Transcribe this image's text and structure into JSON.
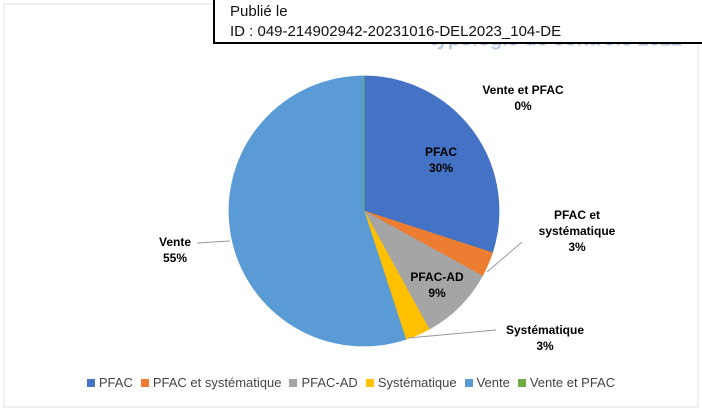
{
  "chart_data": {
    "type": "pie",
    "title": "typologie de contrôle 2022",
    "categories": [
      "PFAC",
      "PFAC et systématique",
      "PFAC-AD",
      "Systématique",
      "Vente",
      "Vente et PFAC"
    ],
    "values": [
      30,
      3,
      9,
      3,
      55,
      0
    ],
    "value_labels": [
      "30%",
      "3%",
      "9%",
      "3%",
      "55%",
      "0%"
    ],
    "colors": [
      "#4472c4",
      "#ed7d31",
      "#a5a5a5",
      "#ffc000",
      "#5b9bd5",
      "#70ad47"
    ],
    "legend": "bottom"
  },
  "stamp": {
    "line1": "Publié le",
    "line2": "ID : 049-214902942-20231016-DEL2023_104-DE"
  }
}
